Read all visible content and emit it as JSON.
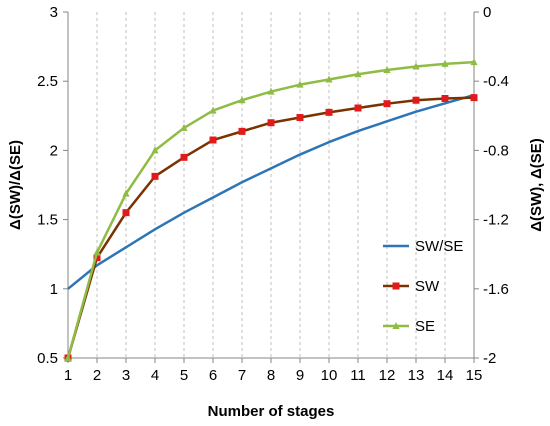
{
  "chart_data": {
    "type": "line",
    "title": "",
    "xlabel": "Number of stages",
    "ylabel": "Δ(SW)/Δ(SE)",
    "y2label": "Δ(SW), Δ(SE)",
    "x": [
      1,
      2,
      3,
      4,
      5,
      6,
      7,
      8,
      9,
      10,
      11,
      12,
      13,
      14,
      15
    ],
    "x_ticks": [
      "1",
      "2",
      "3",
      "4",
      "5",
      "6",
      "7",
      "8",
      "9",
      "10",
      "11",
      "12",
      "13",
      "14",
      "15"
    ],
    "ylim": [
      0.5,
      3
    ],
    "y_ticks": [
      "0.5",
      "1",
      "1.5",
      "2",
      "2.5",
      "3"
    ],
    "y2lim": [
      -2,
      0
    ],
    "y2_ticks": [
      "-2",
      "-1.6",
      "-1.2",
      "-0.8",
      "-0.4",
      "0"
    ],
    "grid": "vertical dashed",
    "legend_position": "right",
    "series": [
      {
        "name": "SW/SE",
        "axis": "left",
        "color": "#2e75b6",
        "marker": "none",
        "values": [
          1.0,
          1.17,
          1.3,
          1.43,
          1.55,
          1.66,
          1.77,
          1.87,
          1.97,
          2.06,
          2.14,
          2.21,
          2.28,
          2.34,
          2.4
        ]
      },
      {
        "name": "SW",
        "axis": "right",
        "color": "#e31a1c",
        "line_color": "#7b3200",
        "marker": "square",
        "values": [
          -2.0,
          -1.42,
          -1.16,
          -0.95,
          -0.84,
          -0.74,
          -0.69,
          -0.64,
          -0.61,
          -0.58,
          -0.555,
          -0.53,
          -0.51,
          -0.5,
          -0.495
        ]
      },
      {
        "name": "SE",
        "axis": "right",
        "color": "#8fbc45",
        "marker": "triangle",
        "values": [
          -2.0,
          -1.39,
          -1.05,
          -0.8,
          -0.67,
          -0.57,
          -0.51,
          -0.46,
          -0.42,
          -0.39,
          -0.36,
          -0.335,
          -0.315,
          -0.3,
          -0.29
        ]
      }
    ]
  }
}
